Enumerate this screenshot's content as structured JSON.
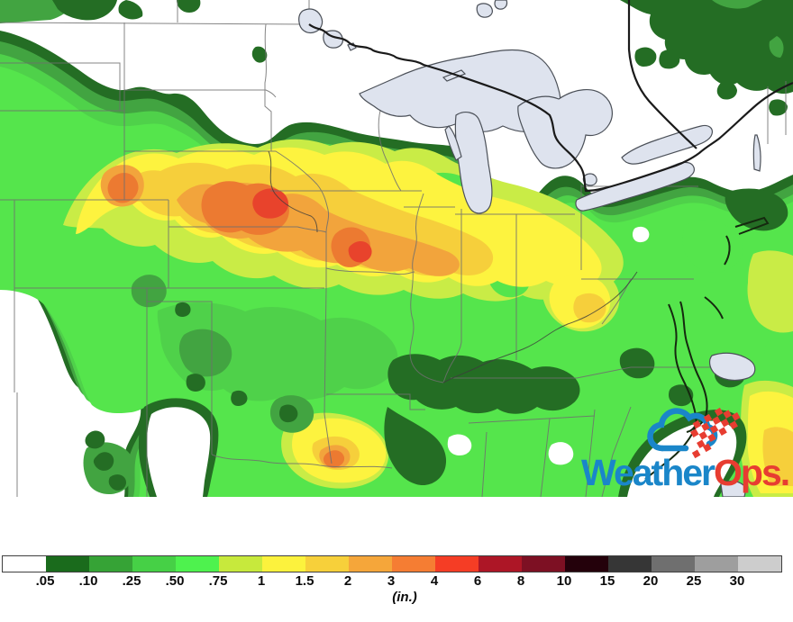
{
  "logo": {
    "text_primary": "Weather",
    "text_secondary": "Ops",
    "suffix": ".",
    "blue": "#1a86c9",
    "red": "#e73d31"
  },
  "legend": {
    "unit_label": "(in.)",
    "labels": [
      ".05",
      ".10",
      ".25",
      ".50",
      ".75",
      "1",
      "1.5",
      "2",
      "3",
      "4",
      "6",
      "8",
      "10",
      "15",
      "20",
      "25",
      "30"
    ],
    "segment_colors": [
      "#ffffff",
      "#1a6b1c",
      "#36a336",
      "#46d046",
      "#4ef24e",
      "#c7e93c",
      "#fcf23d",
      "#f7d03a",
      "#f5a63a",
      "#f57d33",
      "#f53d25",
      "#ad1626",
      "#7d1023",
      "#24010b",
      "#363636",
      "#6f6f6f",
      "#9e9e9e",
      "#cdcdcd"
    ],
    "level_colors": {
      "w": "#ffffff",
      "05": "#246d24",
      "10": "#42a441",
      "25": "#4fd14a",
      "50": "#55e54c",
      "75": "#c9ec46",
      "1": "#fdf33f",
      "1.5": "#f6cf3b",
      "2": "#f2a43c",
      "3": "#ec7a31",
      "4": "#e8432c"
    }
  },
  "map_style": {
    "lake_fill": "#dee3ee",
    "lake_stroke": "#4b5058",
    "state_border": "#6f6f6f",
    "international_border": "#1a1a1a",
    "river": "#3c3c3c",
    "coast_dark": "#15290f"
  }
}
